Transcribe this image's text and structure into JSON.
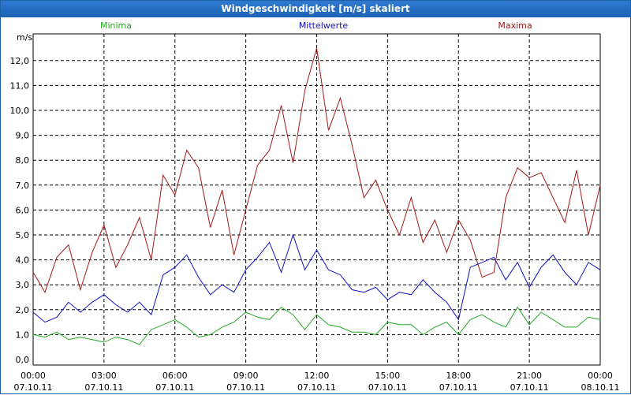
{
  "window": {
    "title": "Windgeschwindigkeit [m/s] skaliert"
  },
  "colors": {
    "minima": "#22aa22",
    "mittelwerte": "#1010c0",
    "maxima": "#a01818",
    "grid": "#000000",
    "titlebar": "#1f66b8"
  },
  "chart_data": {
    "type": "line",
    "title": "Windgeschwindigkeit [m/s] skaliert",
    "ylabel": "m/s",
    "ylim": [
      0,
      13
    ],
    "grid": true,
    "legend": [
      "Minima",
      "Mittelwerte",
      "Maxima"
    ],
    "y_ticks": [
      "0,0",
      "1,0",
      "2,0",
      "3,0",
      "4,0",
      "5,0",
      "6,0",
      "7,0",
      "8,0",
      "9,0",
      "10,0",
      "11,0",
      "12,0"
    ],
    "x_ticks": [
      {
        "time": "00:00",
        "date": "07.10.11"
      },
      {
        "time": "03:00",
        "date": "07.10.11"
      },
      {
        "time": "06:00",
        "date": "07.10.11"
      },
      {
        "time": "09:00",
        "date": "07.10.11"
      },
      {
        "time": "12:00",
        "date": "07.10.11"
      },
      {
        "time": "15:00",
        "date": "07.10.11"
      },
      {
        "time": "18:00",
        "date": "07.10.11"
      },
      {
        "time": "21:00",
        "date": "07.10.11"
      },
      {
        "time": "00:00",
        "date": "08.10.11"
      }
    ],
    "x_range_hours": [
      0,
      24
    ],
    "series": [
      {
        "name": "Maxima",
        "x_hours": [
          0,
          0.5,
          1,
          1.5,
          2,
          2.5,
          3,
          3.5,
          4,
          4.5,
          5,
          5.5,
          6,
          6.5,
          7,
          7.5,
          8,
          8.5,
          9,
          9.5,
          10,
          10.5,
          11,
          11.5,
          12,
          12.5,
          13,
          13.5,
          14,
          14.5,
          15,
          15.5,
          16,
          16.5,
          17,
          17.5,
          18,
          18.5,
          19,
          19.5,
          20,
          20.5,
          21,
          21.5,
          22,
          22.5,
          23,
          23.5,
          24
        ],
        "values": [
          3.5,
          2.7,
          4.1,
          4.6,
          2.8,
          4.3,
          5.4,
          3.7,
          4.6,
          5.7,
          4.0,
          7.4,
          6.6,
          8.4,
          7.7,
          5.3,
          6.8,
          4.2,
          6.0,
          7.8,
          8.4,
          10.2,
          7.9,
          10.8,
          12.5,
          9.2,
          10.5,
          8.6,
          6.5,
          7.2,
          6.0,
          5.0,
          6.5,
          4.7,
          5.6,
          4.3,
          5.6,
          4.8,
          3.3,
          3.5,
          6.5,
          7.7,
          7.3,
          7.5,
          6.5,
          5.5,
          7.6,
          5.0,
          7.0
        ]
      },
      {
        "name": "Mittelwerte",
        "x_hours": [
          0,
          0.5,
          1,
          1.5,
          2,
          2.5,
          3,
          3.5,
          4,
          4.5,
          5,
          5.5,
          6,
          6.5,
          7,
          7.5,
          8,
          8.5,
          9,
          9.5,
          10,
          10.5,
          11,
          11.5,
          12,
          12.5,
          13,
          13.5,
          14,
          14.5,
          15,
          15.5,
          16,
          16.5,
          17,
          17.5,
          18,
          18.5,
          19,
          19.5,
          20,
          20.5,
          21,
          21.5,
          22,
          22.5,
          23,
          23.5,
          24
        ],
        "values": [
          1.9,
          1.5,
          1.7,
          2.3,
          1.9,
          2.3,
          2.6,
          2.2,
          1.9,
          2.3,
          1.8,
          3.4,
          3.7,
          4.2,
          3.3,
          2.6,
          3.0,
          2.7,
          3.6,
          4.1,
          4.7,
          3.5,
          5.0,
          3.6,
          4.4,
          3.6,
          3.4,
          2.8,
          2.7,
          2.9,
          2.4,
          2.7,
          2.6,
          3.2,
          2.7,
          2.3,
          1.6,
          3.7,
          3.9,
          4.1,
          3.2,
          3.9,
          2.9,
          3.7,
          4.2,
          3.5,
          3.0,
          3.9,
          3.6
        ]
      },
      {
        "name": "Minima",
        "x_hours": [
          0,
          0.5,
          1,
          1.5,
          2,
          2.5,
          3,
          3.5,
          4,
          4.5,
          5,
          5.5,
          6,
          6.5,
          7,
          7.5,
          8,
          8.5,
          9,
          9.5,
          10,
          10.5,
          11,
          11.5,
          12,
          12.5,
          13,
          13.5,
          14,
          14.5,
          15,
          15.5,
          16,
          16.5,
          17,
          17.5,
          18,
          18.5,
          19,
          19.5,
          20,
          20.5,
          21,
          21.5,
          22,
          22.5,
          23,
          23.5,
          24
        ],
        "values": [
          1.0,
          0.9,
          1.1,
          0.8,
          0.9,
          0.8,
          0.7,
          0.9,
          0.8,
          0.6,
          1.2,
          1.4,
          1.6,
          1.3,
          0.9,
          1.0,
          1.3,
          1.5,
          1.9,
          1.7,
          1.6,
          2.1,
          1.8,
          1.2,
          1.8,
          1.4,
          1.3,
          1.1,
          1.1,
          1.0,
          1.5,
          1.4,
          1.4,
          1.0,
          1.3,
          1.5,
          1.0,
          1.6,
          1.8,
          1.5,
          1.3,
          2.1,
          1.4,
          1.9,
          1.6,
          1.3,
          1.3,
          1.7,
          1.6
        ]
      }
    ]
  }
}
